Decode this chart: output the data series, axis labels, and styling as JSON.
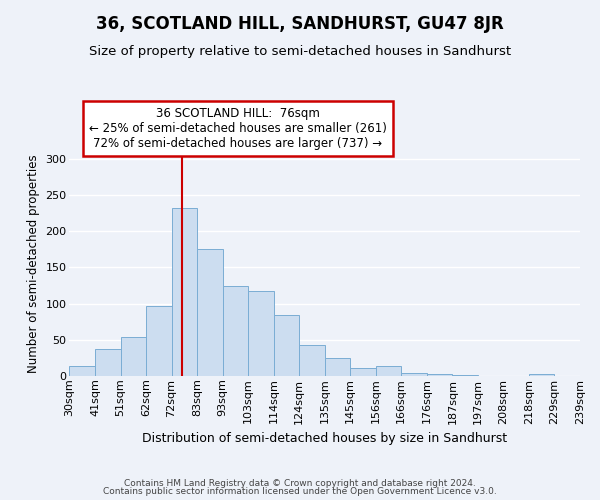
{
  "title": "36, SCOTLAND HILL, SANDHURST, GU47 8JR",
  "subtitle": "Size of property relative to semi-detached houses in Sandhurst",
  "xlabel": "Distribution of semi-detached houses by size in Sandhurst",
  "ylabel": "Number of semi-detached properties",
  "bar_labels": [
    "30sqm",
    "41sqm",
    "51sqm",
    "62sqm",
    "72sqm",
    "83sqm",
    "93sqm",
    "103sqm",
    "114sqm",
    "124sqm",
    "135sqm",
    "145sqm",
    "156sqm",
    "166sqm",
    "176sqm",
    "187sqm",
    "197sqm",
    "208sqm",
    "218sqm",
    "229sqm",
    "239sqm"
  ],
  "bar_values": [
    14,
    37,
    53,
    96,
    232,
    176,
    124,
    118,
    84,
    42,
    24,
    11,
    13,
    4,
    2,
    1,
    0,
    0,
    2,
    0
  ],
  "bar_color": "#ccddf0",
  "bar_edge_color": "#7aadd4",
  "ylim": [
    0,
    310
  ],
  "yticks": [
    0,
    50,
    100,
    150,
    200,
    250,
    300
  ],
  "vline_color": "#cc0000",
  "annotation_title": "36 SCOTLAND HILL:  76sqm",
  "annotation_line1": "← 25% of semi-detached houses are smaller (261)",
  "annotation_line2": "72% of semi-detached houses are larger (737) →",
  "annotation_box_color": "#ffffff",
  "annotation_box_edge": "#cc0000",
  "footer1": "Contains HM Land Registry data © Crown copyright and database right 2024.",
  "footer2": "Contains public sector information licensed under the Open Government Licence v3.0.",
  "background_color": "#eef2f9",
  "grid_color": "#ffffff",
  "title_fontsize": 12,
  "subtitle_fontsize": 9.5,
  "xlabel_fontsize": 9,
  "ylabel_fontsize": 8.5,
  "tick_fontsize": 8,
  "footer_fontsize": 6.5,
  "annotation_fontsize": 8.5
}
